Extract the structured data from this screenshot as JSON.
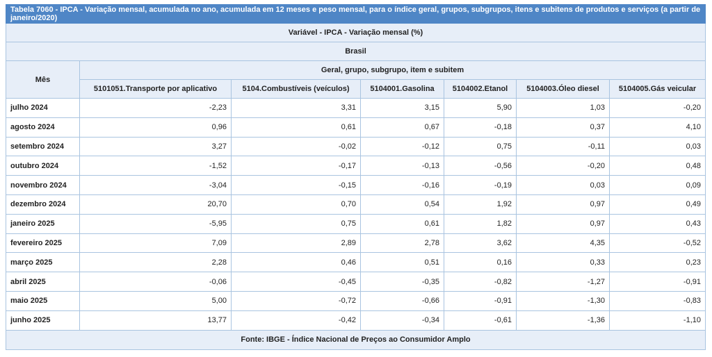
{
  "title": "Tabela 7060 - IPCA - Variação mensal, acumulada no ano, acumulada em 12 meses e peso mensal, para o índice geral, grupos, subgrupos, itens e subitens de produtos e serviços (a partir de janeiro/2020)",
  "variable": "Variável - IPCA - Variação mensal (%)",
  "region": "Brasil",
  "row_header": "Mês",
  "group_header": "Geral, grupo, subgrupo, item e subitem",
  "columns": [
    "5101051.Transporte por aplicativo",
    "5104.Combustíveis (veículos)",
    "5104001.Gasolina",
    "5104002.Etanol",
    "5104003.Óleo diesel",
    "5104005.Gás veicular"
  ],
  "rows": [
    {
      "mes": "julho 2024",
      "values": [
        "-2,23",
        "3,31",
        "3,15",
        "5,90",
        "1,03",
        "-0,20"
      ]
    },
    {
      "mes": "agosto 2024",
      "values": [
        "0,96",
        "0,61",
        "0,67",
        "-0,18",
        "0,37",
        "4,10"
      ]
    },
    {
      "mes": "setembro 2024",
      "values": [
        "3,27",
        "-0,02",
        "-0,12",
        "0,75",
        "-0,11",
        "0,03"
      ]
    },
    {
      "mes": "outubro 2024",
      "values": [
        "-1,52",
        "-0,17",
        "-0,13",
        "-0,56",
        "-0,20",
        "0,48"
      ]
    },
    {
      "mes": "novembro 2024",
      "values": [
        "-3,04",
        "-0,15",
        "-0,16",
        "-0,19",
        "0,03",
        "0,09"
      ]
    },
    {
      "mes": "dezembro 2024",
      "values": [
        "20,70",
        "0,70",
        "0,54",
        "1,92",
        "0,97",
        "0,49"
      ]
    },
    {
      "mes": "janeiro 2025",
      "values": [
        "-5,95",
        "0,75",
        "0,61",
        "1,82",
        "0,97",
        "0,43"
      ]
    },
    {
      "mes": "fevereiro 2025",
      "values": [
        "7,09",
        "2,89",
        "2,78",
        "3,62",
        "4,35",
        "-0,52"
      ]
    },
    {
      "mes": "março 2025",
      "values": [
        "2,28",
        "0,46",
        "0,51",
        "0,16",
        "0,33",
        "0,23"
      ]
    },
    {
      "mes": "abril 2025",
      "values": [
        "-0,06",
        "-0,45",
        "-0,35",
        "-0,82",
        "-1,27",
        "-0,91"
      ]
    },
    {
      "mes": "maio 2025",
      "values": [
        "5,00",
        "-0,72",
        "-0,66",
        "-0,91",
        "-1,30",
        "-0,83"
      ]
    },
    {
      "mes": "junho 2025",
      "values": [
        "13,77",
        "-0,42",
        "-0,34",
        "-0,61",
        "-1,36",
        "-1,10"
      ]
    }
  ],
  "footer": "Fonte: IBGE - Índice Nacional de Preços ao Consumidor Amplo",
  "colors": {
    "title_bg": "#4f86c6",
    "header_bg": "#e7eef8",
    "border": "#a9c4e0"
  }
}
